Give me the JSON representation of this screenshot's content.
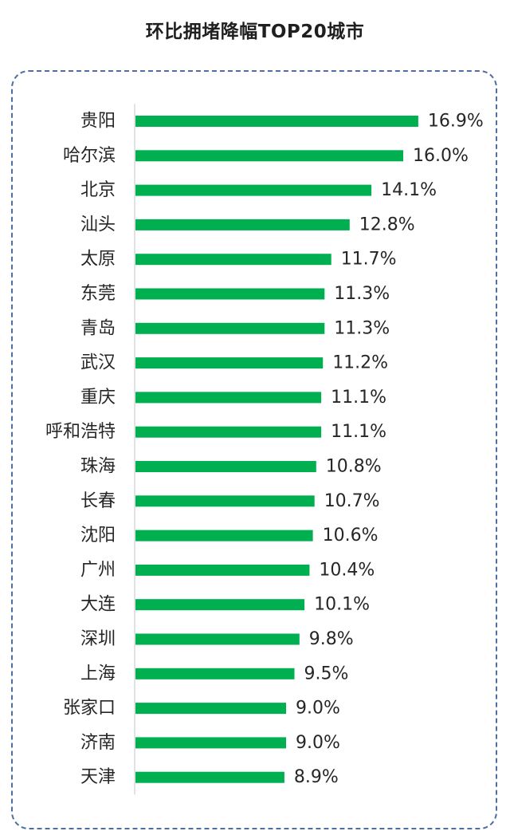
{
  "colors": {
    "bar": "#00b050",
    "axis": "#d9d9d9",
    "frame": "#4f6fa0"
  },
  "chart_data": {
    "type": "bar",
    "orientation": "horizontal",
    "title": "环比拥堵降幅TOP20城市",
    "unit": "%",
    "xlim": [
      0,
      17
    ],
    "grid": false,
    "legend": "none",
    "categories": [
      "贵阳",
      "哈尔滨",
      "北京",
      "汕头",
      "太原",
      "东莞",
      "青岛",
      "武汉",
      "重庆",
      "呼和浩特",
      "珠海",
      "长春",
      "沈阳",
      "广州",
      "大连",
      "深圳",
      "上海",
      "张家口",
      "济南",
      "天津"
    ],
    "values": [
      16.9,
      16.0,
      14.1,
      12.8,
      11.7,
      11.3,
      11.3,
      11.2,
      11.1,
      11.1,
      10.8,
      10.7,
      10.6,
      10.4,
      10.1,
      9.8,
      9.5,
      9.0,
      9.0,
      8.9
    ],
    "value_labels": [
      "16.9%",
      "16.0%",
      "14.1%",
      "12.8%",
      "11.7%",
      "11.3%",
      "11.3%",
      "11.2%",
      "11.1%",
      "11.1%",
      "10.8%",
      "10.7%",
      "10.6%",
      "10.4%",
      "10.1%",
      "9.8%",
      "9.5%",
      "9.0%",
      "9.0%",
      "8.9%"
    ]
  }
}
